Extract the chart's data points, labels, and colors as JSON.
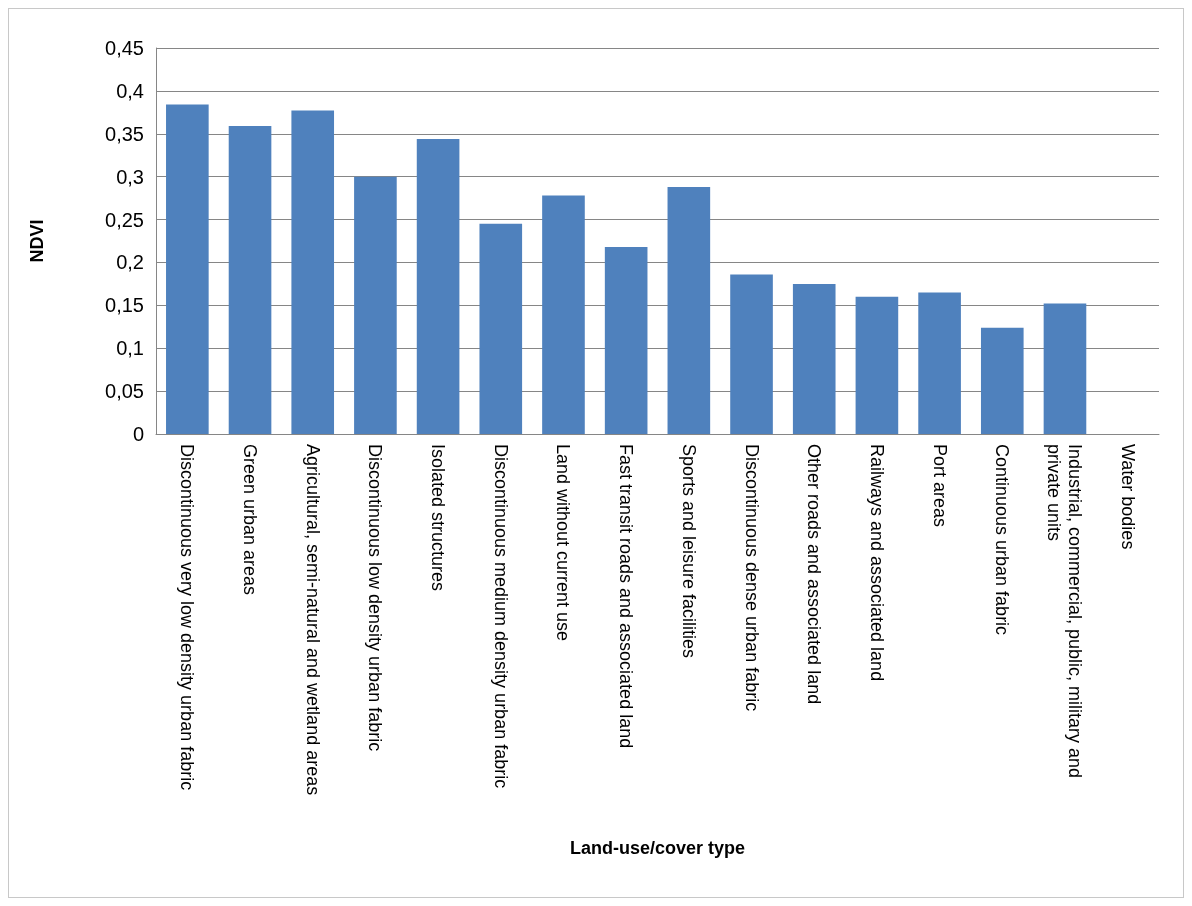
{
  "chart_data": {
    "type": "bar",
    "xlabel": "Land-use/cover type",
    "ylabel": "NDVI",
    "categories": [
      "Discontinuous very low density urban fabric",
      "Green urban areas",
      "Agricultural, semi-natural and wetland areas",
      "Discontinuous low density urban fabric",
      "Isolated structures",
      "Discontinuous medium density urban fabric",
      "Land without current use",
      "Fast transit roads and associated land",
      "Sports and leisure facilities",
      "Discontinuous dense urban fabric",
      "Other roads and associated land",
      "Railways and associated land",
      "Port areas",
      "Continuous urban fabric",
      "Industrial, commercial, public, military and private units",
      "Water bodies"
    ],
    "values": [
      0.384,
      0.359,
      0.377,
      0.3,
      0.344,
      0.245,
      0.278,
      0.218,
      0.288,
      0.186,
      0.175,
      0.16,
      0.165,
      0.124,
      0.152,
      null
    ],
    "color": "#4f81bd",
    "ylim": [
      0,
      0.45
    ],
    "yticks": [
      0,
      {
        "value": 0.05,
        "label": "0,05"
      },
      {
        "value": 0.1,
        "label": "0,1"
      },
      {
        "value": 0.15,
        "label": "0,15"
      },
      {
        "value": 0.2,
        "label": "0,2"
      },
      {
        "value": 0.25,
        "label": "0,25"
      },
      {
        "value": 0.3,
        "label": "0,3"
      },
      {
        "value": 0.35,
        "label": "0,35"
      },
      {
        "value": 0.4,
        "label": "0,4"
      },
      {
        "value": 0.45,
        "label": "0,45"
      }
    ],
    "grid": "y"
  }
}
